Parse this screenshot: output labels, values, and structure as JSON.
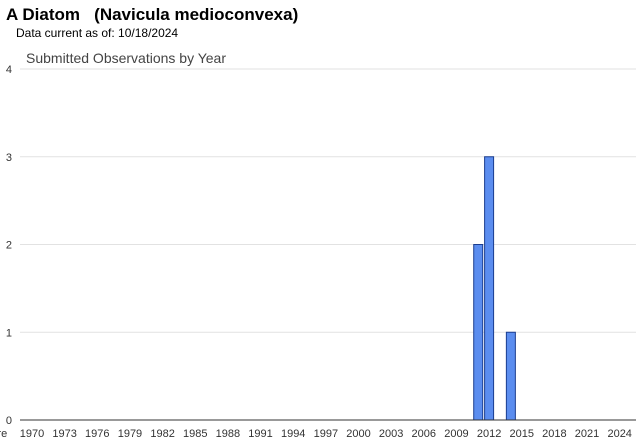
{
  "header": {
    "title": "A Diatom   (Navicula medioconvexa)",
    "data_current": "Data current as of: 10/18/2024"
  },
  "chart_data": {
    "type": "bar",
    "title": "Submitted Observations by Year",
    "xlabel": "",
    "ylabel": "",
    "ylim": [
      0,
      4
    ],
    "yticks": [
      0,
      1,
      2,
      3,
      4
    ],
    "grid": true,
    "bar_color": "#5b8def",
    "bar_outline_color": "#1a3d8f",
    "x_tick_labels": [
      "pre",
      "1970",
      "1973",
      "1976",
      "1979",
      "1982",
      "1985",
      "1988",
      "1991",
      "1994",
      "1997",
      "2000",
      "2003",
      "2006",
      "2009",
      "2012",
      "2015",
      "2018",
      "2021",
      "2024"
    ],
    "x_tick_years": [
      1967,
      1970,
      1973,
      1976,
      1979,
      1982,
      1985,
      1988,
      1991,
      1994,
      1997,
      2000,
      2003,
      2006,
      2009,
      2012,
      2015,
      2018,
      2021,
      2024
    ],
    "categories": [
      "2011",
      "2012",
      "2014"
    ],
    "values": [
      2,
      3,
      1
    ]
  }
}
